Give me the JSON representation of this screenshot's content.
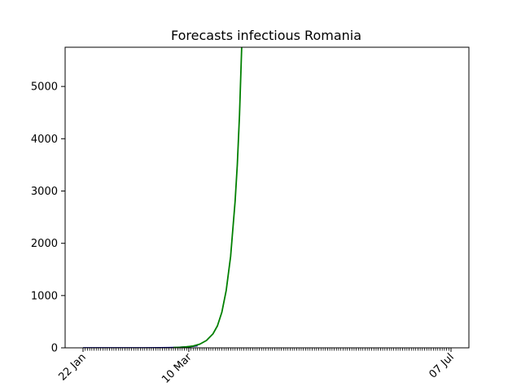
{
  "chart_data": {
    "type": "line",
    "title": "Forecasts infectious Romania",
    "xlabel": "",
    "ylabel": "",
    "x_tick_labels": [
      "22 Jan",
      "10 Mar",
      "07 Jul"
    ],
    "x_range": [
      "2020-01-22",
      "2020-07-07"
    ],
    "ylim": [
      0,
      5750
    ],
    "y_ticks": [
      0,
      1000,
      2000,
      3000,
      4000,
      5000
    ],
    "grid": false,
    "legend": "none",
    "series": [
      {
        "color": "#00008b",
        "x": [
          "2020-01-22",
          "2020-01-29",
          "2020-02-05",
          "2020-02-12",
          "2020-02-19",
          "2020-02-26",
          "2020-03-01",
          "2020-03-05",
          "2020-03-10",
          "2020-03-14"
        ],
        "values": [
          0,
          0,
          0,
          0,
          0,
          1,
          3,
          8,
          20,
          40
        ]
      },
      {
        "color": "#008000",
        "x": [
          "2020-03-03",
          "2020-03-06",
          "2020-03-09",
          "2020-03-12",
          "2020-03-15",
          "2020-03-18",
          "2020-03-21",
          "2020-03-23",
          "2020-03-25",
          "2020-03-27",
          "2020-03-29",
          "2020-03-31",
          "2020-04-01",
          "2020-04-02",
          "2020-04-03"
        ],
        "values": [
          5,
          10,
          18,
          35,
          70,
          140,
          270,
          420,
          680,
          1100,
          1750,
          2800,
          3500,
          4450,
          5750
        ]
      }
    ]
  }
}
